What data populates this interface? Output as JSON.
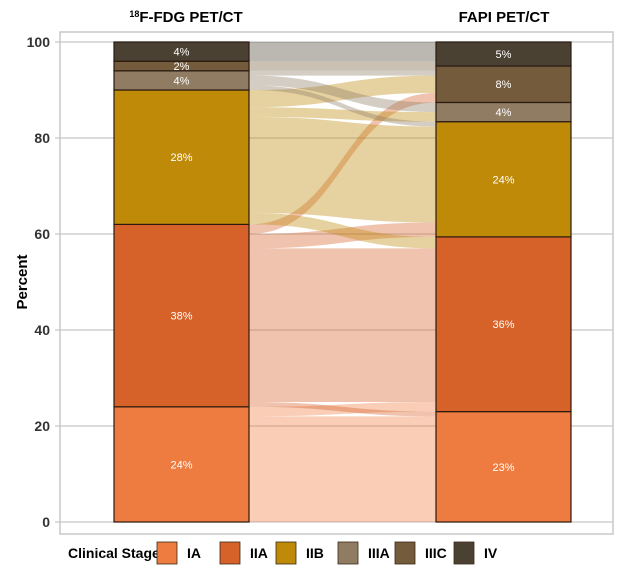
{
  "chart_data": {
    "type": "alluvial",
    "ylabel": "Percent",
    "ylim": [
      0,
      100
    ],
    "yticks": [
      "0",
      "20",
      "40",
      "60",
      "80",
      "100"
    ],
    "grid": true,
    "axes": [
      {
        "title_sup": "18",
        "title": "F-FDG PET/CT"
      },
      {
        "title": "FAPI PET/CT"
      }
    ],
    "strata": [
      "IA",
      "IIA",
      "IIB",
      "IIIA",
      "IIIC",
      "IV"
    ],
    "colors": {
      "IA": "#EE7B40",
      "IIA": "#D6622A",
      "IIB": "#BE8A08",
      "IIIA": "#8F7C63",
      "IIIC": "#735B3B",
      "IV": "#4B4133"
    },
    "left_values": [
      24,
      38,
      28,
      4,
      2,
      4
    ],
    "right_values": [
      23,
      36.4,
      24,
      4,
      7.6,
      5
    ],
    "left_labels": [
      "24%",
      "38%",
      "28%",
      "4%",
      "2%",
      "4%"
    ],
    "right_labels": [
      "23%",
      "36%",
      "24%",
      "4%",
      "8%",
      "5%"
    ],
    "flows": [
      {
        "from": "IA",
        "to": "IA",
        "value": 22
      },
      {
        "from": "IA",
        "to": "IIA",
        "value": 2
      },
      {
        "from": "IIA",
        "to": "IA",
        "value": 1
      },
      {
        "from": "IIA",
        "to": "IIA",
        "value": 32
      },
      {
        "from": "IIA",
        "to": "IIB",
        "value": 3
      },
      {
        "from": "IIA",
        "to": "IIIC",
        "value": 2
      },
      {
        "from": "IIB",
        "to": "IIA",
        "value": 2.4
      },
      {
        "from": "IIB",
        "to": "IIB",
        "value": 20
      },
      {
        "from": "IIB",
        "to": "IIIA",
        "value": 2
      },
      {
        "from": "IIB",
        "to": "IIIC",
        "value": 3.6
      },
      {
        "from": "IIIA",
        "to": "IIB",
        "value": 1
      },
      {
        "from": "IIIA",
        "to": "IIIA",
        "value": 2
      },
      {
        "from": "IIIA",
        "to": "IIIC",
        "value": 1
      },
      {
        "from": "IIIC",
        "to": "IIIC",
        "value": 1
      },
      {
        "from": "IIIC",
        "to": "IV",
        "value": 1
      },
      {
        "from": "IV",
        "to": "IV",
        "value": 4
      }
    ],
    "legend": {
      "title": "Clinical Stage",
      "position": "bottom"
    }
  }
}
